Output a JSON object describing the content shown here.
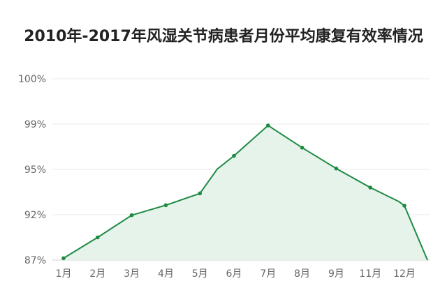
{
  "chart_data": {
    "type": "area",
    "title": "2010年-2017年风湿关节病患者月份平均康复有效率情况",
    "xlabel": "",
    "ylabel": "",
    "y_tick_labels": [
      "87%",
      "92%",
      "95%",
      "99%",
      "100%"
    ],
    "categories": [
      "1月",
      "2月",
      "3月",
      "4月",
      "5月",
      "6月",
      "7月",
      "8月",
      "9月",
      "11月",
      "12月"
    ],
    "series": [
      {
        "values": [
          0.04,
          0.5,
          0.99,
          1.21,
          1.47,
          2.3,
          2.97,
          2.48,
          2.02,
          1.6,
          1.2
        ],
        "color": "#1e8a43"
      }
    ],
    "extra_vertices": {
      "before_6": 2.01,
      "after_11": 1.29,
      "end": 0.0
    },
    "grid": true,
    "legend": "none",
    "fill_color": "#e5f3ea",
    "line_color": "#1e8a43"
  }
}
